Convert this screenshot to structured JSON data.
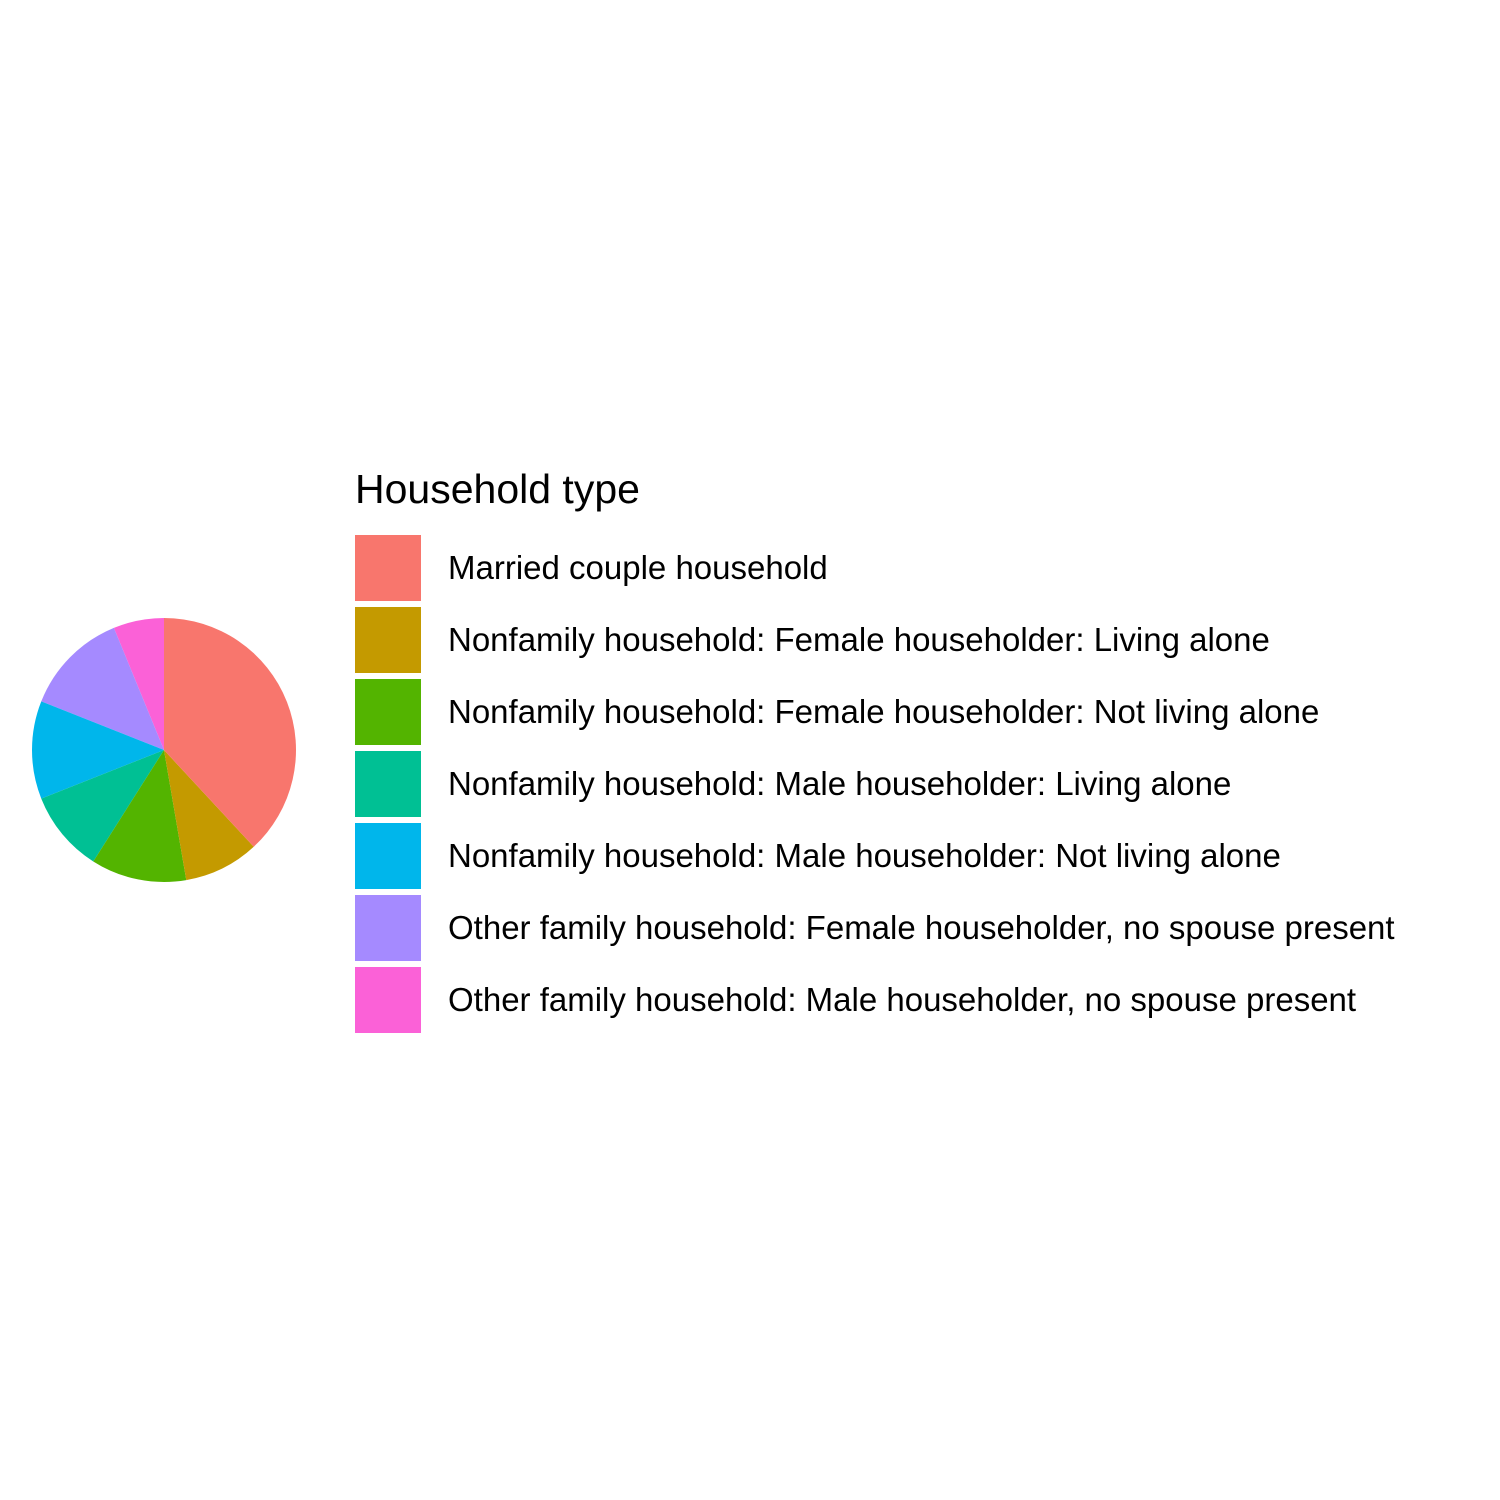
{
  "chart_data": {
    "type": "pie",
    "title": "",
    "legend": {
      "title": "Household type",
      "position": "right"
    },
    "slices": [
      {
        "label": "Married couple household",
        "value": 38.1,
        "color": "#F8766D"
      },
      {
        "label": "Nonfamily household: Female householder: Living alone",
        "value": 9.2,
        "color": "#C49A00"
      },
      {
        "label": "Nonfamily household: Female householder: Not living alone",
        "value": 11.7,
        "color": "#53B400"
      },
      {
        "label": "Nonfamily household: Male householder: Living alone",
        "value": 10.0,
        "color": "#00C094"
      },
      {
        "label": "Nonfamily household: Male householder: Not living alone",
        "value": 12.0,
        "color": "#00B6EB"
      },
      {
        "label": "Other family household: Female householder, no spouse present",
        "value": 12.8,
        "color": "#A58AFF"
      },
      {
        "label": "Other family household: Male householder, no spouse present",
        "value": 6.2,
        "color": "#FB61D7"
      }
    ],
    "stacking_order": "counterclockwise-from-top-starting-with-last-legend-entry"
  }
}
